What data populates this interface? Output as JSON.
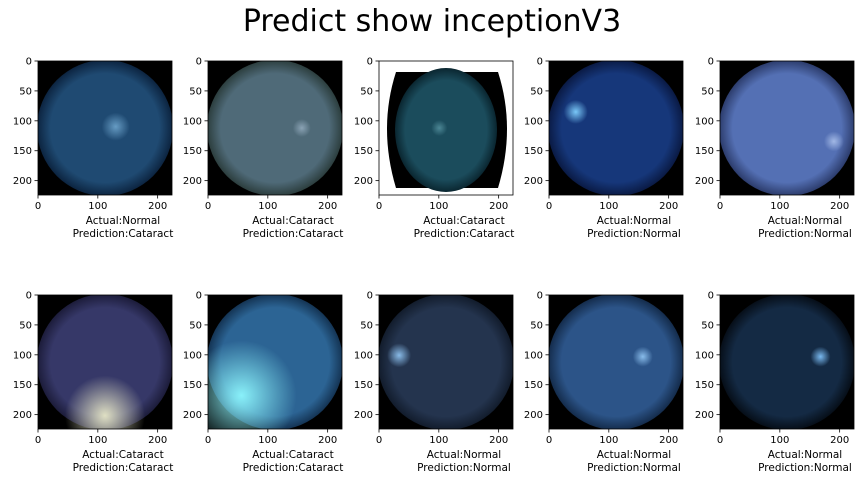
{
  "title": "Predict show inceptionV3",
  "axis": {
    "x_ticks": [
      "0",
      "100",
      "200"
    ],
    "y_ticks": [
      "0",
      "50",
      "100",
      "150",
      "200"
    ]
  },
  "chart_data": {
    "type": "image_grid",
    "title": "Predict show inceptionV3",
    "rows": 2,
    "cols": 5,
    "image_extent": [
      0,
      224,
      224,
      0
    ],
    "x_ticks": [
      0,
      100,
      200
    ],
    "y_ticks": [
      0,
      50,
      100,
      150,
      200
    ],
    "panels": [
      {
        "actual": "Actual:Normal",
        "prediction": "Prediction:Cataract",
        "palette": {
          "bg": "#000000",
          "fundus": "#1f4a72",
          "edge": "#0c2440",
          "glow": "#6aa0c8"
        }
      },
      {
        "actual": "Actual:Cataract",
        "prediction": "Prediction:Cataract",
        "palette": {
          "bg": "#000000",
          "fundus": "#4f6a78",
          "edge": "#2c3e3e",
          "glow": "#8ea6b8"
        }
      },
      {
        "actual": "Actual:Cataract",
        "prediction": "Prediction:Cataract",
        "palette": {
          "bg": "#ffffff",
          "fundus": "#1b4c5c",
          "edge": "#0a2630",
          "glow": "#4f8a98"
        }
      },
      {
        "actual": "Actual:Normal",
        "prediction": "Prediction:Normal",
        "palette": {
          "bg": "#000000",
          "fundus": "#16377a",
          "edge": "#0a1a44",
          "glow": "#7fd0ff"
        }
      },
      {
        "actual": "Actual:Normal",
        "prediction": "Prediction:Normal",
        "palette": {
          "bg": "#000000",
          "fundus": "#5470b4",
          "edge": "#2c3c6c",
          "glow": "#a6bce8"
        }
      },
      {
        "actual": "Actual:Cataract",
        "prediction": "Prediction:Cataract",
        "palette": {
          "bg": "#000000",
          "fundus": "#363868",
          "edge": "#1c1c3a",
          "glow": "#e8e8c8"
        }
      },
      {
        "actual": "Actual:Cataract",
        "prediction": "Prediction:Cataract",
        "palette": {
          "bg": "#000000",
          "fundus": "#2c6494",
          "edge": "#143454",
          "glow": "#8ef8ff"
        }
      },
      {
        "actual": "Actual:Normal",
        "prediction": "Prediction:Normal",
        "palette": {
          "bg": "#000000",
          "fundus": "#24344e",
          "edge": "#121c2c",
          "glow": "#8ec2f0"
        }
      },
      {
        "actual": "Actual:Normal",
        "prediction": "Prediction:Normal",
        "palette": {
          "bg": "#000000",
          "fundus": "#2c5488",
          "edge": "#142c4c",
          "glow": "#8ec2f0"
        }
      },
      {
        "actual": "Actual:Normal",
        "prediction": "Prediction:Normal",
        "palette": {
          "bg": "#000000",
          "fundus": "#142a44",
          "edge": "#060e18",
          "glow": "#7ec0f8"
        }
      }
    ]
  }
}
